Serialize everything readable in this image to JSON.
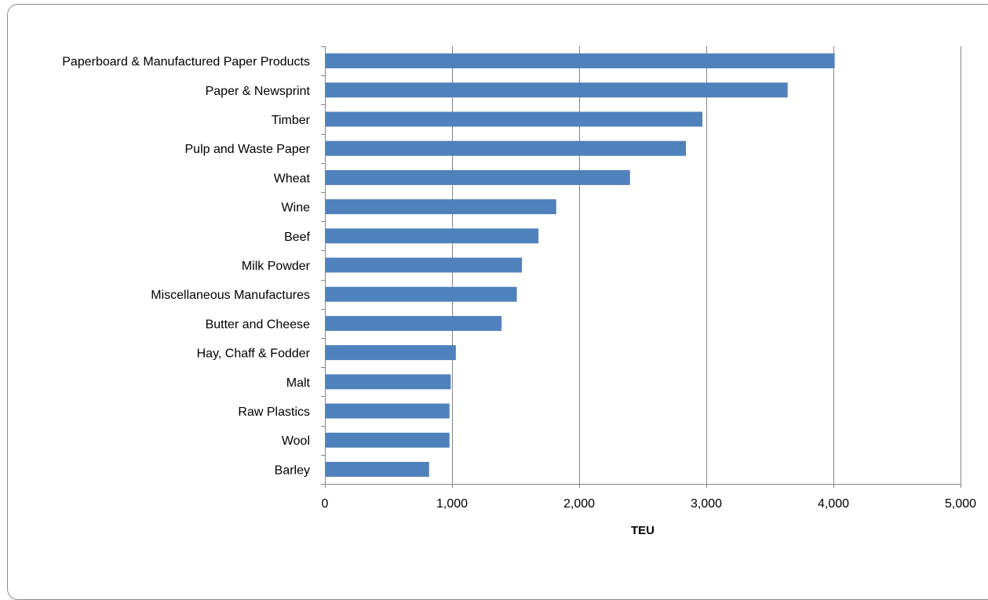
{
  "chart_data": {
    "type": "bar",
    "orientation": "horizontal",
    "categories": [
      "Paperboard & Manufactured Paper Products",
      "Paper & Newsprint",
      "Timber",
      "Pulp and Waste Paper",
      "Wheat",
      "Wine",
      "Beef",
      "Milk Powder",
      "Miscellaneous Manufactures",
      "Butter and Cheese",
      "Hay, Chaff & Fodder",
      "Malt",
      "Raw Plastics",
      "Wool",
      "Barley"
    ],
    "values": [
      4010,
      3640,
      2970,
      2840,
      2400,
      1820,
      1680,
      1550,
      1510,
      1390,
      1030,
      990,
      980,
      980,
      820
    ],
    "xlabel": "TEU",
    "xlim": [
      0,
      5000
    ],
    "xticks": [
      0,
      1000,
      2000,
      3000,
      4000,
      5000
    ],
    "xtick_labels": [
      "0",
      "1,000",
      "2,000",
      "3,000",
      "4,000",
      "5,000"
    ],
    "grid": "vertical",
    "bar_color": "#4f81bd",
    "gridline_color": "#868686"
  }
}
